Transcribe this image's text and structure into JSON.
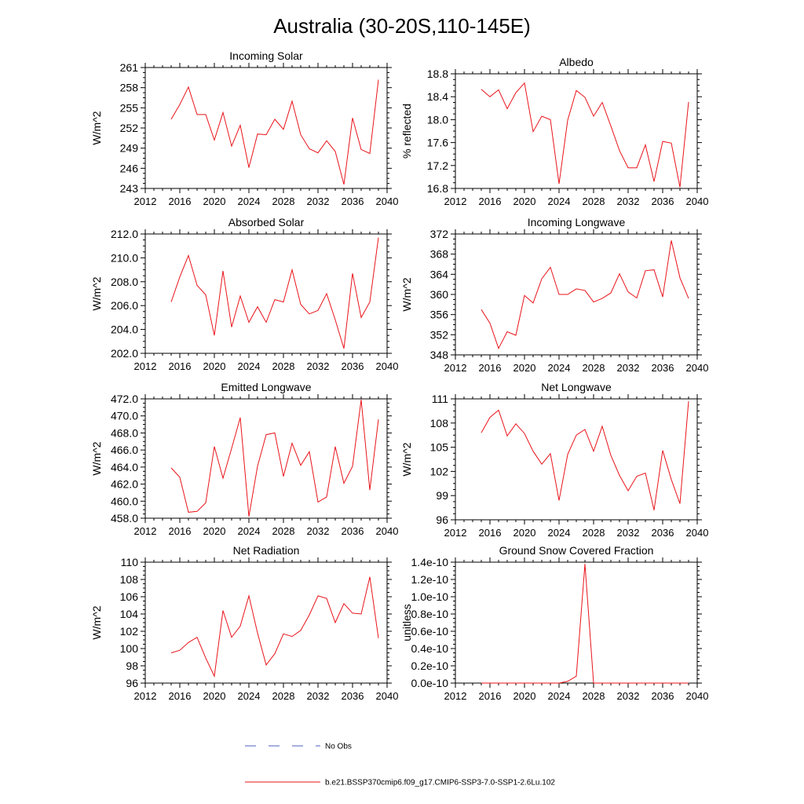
{
  "figure": {
    "title": "Australia (30-20S,110-145E)",
    "legend": [
      {
        "label": "No Obs",
        "color": "#4b5fc0",
        "style": "dashed"
      },
      {
        "label": "b.e21.BSSP370cmip6.f09_g17.CMIP6-SSP3-7.0-SSP1-2.6Lu.102",
        "color": "#e8141a",
        "style": "solid"
      }
    ]
  },
  "colors": {
    "series": "#e8141a",
    "axis": "#000000"
  },
  "chart_data": [
    {
      "type": "line",
      "title": "Incoming Solar",
      "ylabel": "W/m^2",
      "xlabel": "",
      "xlim": [
        2012,
        2040
      ],
      "xticks": [
        2012,
        2016,
        2020,
        2024,
        2028,
        2032,
        2036,
        2040
      ],
      "ylim": [
        243,
        261
      ],
      "yticks": [
        {
          "v": 243,
          "label": "243"
        },
        {
          "v": 246,
          "label": "246"
        },
        {
          "v": 249,
          "label": "249"
        },
        {
          "v": 252,
          "label": "252"
        },
        {
          "v": 255,
          "label": "255"
        },
        {
          "v": 258,
          "label": "258"
        },
        {
          "v": 261,
          "label": "261"
        }
      ],
      "x": [
        2015,
        2016,
        2017,
        2018,
        2019,
        2020,
        2021,
        2022,
        2023,
        2024,
        2025,
        2026,
        2027,
        2028,
        2029,
        2030,
        2031,
        2032,
        2033,
        2034,
        2035,
        2036,
        2037,
        2038,
        2039
      ],
      "series": [
        {
          "values": [
            253.3,
            255.5,
            258.1,
            254.0,
            254.0,
            250.2,
            254.3,
            249.3,
            252.4,
            246.1,
            251.1,
            251.0,
            253.3,
            251.8,
            256.0,
            251.0,
            248.9,
            248.3,
            250.1,
            248.5,
            243.6,
            253.5,
            248.8,
            248.2,
            259.2
          ]
        }
      ]
    },
    {
      "type": "line",
      "title": "Albedo",
      "ylabel": "% reflected",
      "xlabel": "",
      "xlim": [
        2012,
        2040
      ],
      "xticks": [
        2012,
        2016,
        2020,
        2024,
        2028,
        2032,
        2036,
        2040
      ],
      "ylim": [
        16.8,
        18.8
      ],
      "yticks": [
        {
          "v": 16.8,
          "label": "16.8"
        },
        {
          "v": 17.2,
          "label": "17.2"
        },
        {
          "v": 17.6,
          "label": "17.6"
        },
        {
          "v": 18.0,
          "label": "18.0"
        },
        {
          "v": 18.4,
          "label": "18.4"
        },
        {
          "v": 18.8,
          "label": "18.8"
        }
      ],
      "x": [
        2015,
        2016,
        2017,
        2018,
        2019,
        2020,
        2021,
        2022,
        2023,
        2024,
        2025,
        2026,
        2027,
        2028,
        2029,
        2030,
        2031,
        2032,
        2033,
        2034,
        2035,
        2036,
        2037,
        2038,
        2039
      ],
      "series": [
        {
          "values": [
            18.53,
            18.4,
            18.52,
            18.19,
            18.47,
            18.64,
            17.79,
            18.06,
            18.0,
            16.88,
            17.99,
            18.51,
            18.39,
            18.06,
            18.3,
            17.89,
            17.46,
            17.16,
            17.16,
            17.56,
            16.92,
            17.62,
            17.59,
            16.82,
            18.31
          ]
        }
      ]
    },
    {
      "type": "line",
      "title": "Absorbed Solar",
      "ylabel": "W/m^2",
      "xlabel": "",
      "xlim": [
        2012,
        2040
      ],
      "xticks": [
        2012,
        2016,
        2020,
        2024,
        2028,
        2032,
        2036,
        2040
      ],
      "ylim": [
        202.0,
        212.0
      ],
      "yticks": [
        {
          "v": 202,
          "label": "202.0"
        },
        {
          "v": 204,
          "label": "204.0"
        },
        {
          "v": 206,
          "label": "206.0"
        },
        {
          "v": 208,
          "label": "208.0"
        },
        {
          "v": 210,
          "label": "210.0"
        },
        {
          "v": 212,
          "label": "212.0"
        }
      ],
      "x": [
        2015,
        2016,
        2017,
        2018,
        2019,
        2020,
        2021,
        2022,
        2023,
        2024,
        2025,
        2026,
        2027,
        2028,
        2029,
        2030,
        2031,
        2032,
        2033,
        2034,
        2035,
        2036,
        2037,
        2038,
        2039
      ],
      "series": [
        {
          "values": [
            206.3,
            208.4,
            210.2,
            207.7,
            206.9,
            203.5,
            208.9,
            204.2,
            206.8,
            204.6,
            205.9,
            204.6,
            206.5,
            206.3,
            209.0,
            206.1,
            205.3,
            205.6,
            207.0,
            204.8,
            202.4,
            208.7,
            205.0,
            206.3,
            211.7
          ]
        }
      ]
    },
    {
      "type": "line",
      "title": "Incoming Longwave",
      "ylabel": "W/m^2",
      "xlabel": "",
      "xlim": [
        2012,
        2040
      ],
      "xticks": [
        2012,
        2016,
        2020,
        2024,
        2028,
        2032,
        2036,
        2040
      ],
      "ylim": [
        348,
        372
      ],
      "yticks": [
        {
          "v": 348,
          "label": "348"
        },
        {
          "v": 352,
          "label": "352"
        },
        {
          "v": 356,
          "label": "356"
        },
        {
          "v": 360,
          "label": "360"
        },
        {
          "v": 364,
          "label": "364"
        },
        {
          "v": 368,
          "label": "368"
        },
        {
          "v": 372,
          "label": "372"
        }
      ],
      "x": [
        2015,
        2016,
        2017,
        2018,
        2019,
        2020,
        2021,
        2022,
        2023,
        2024,
        2025,
        2026,
        2027,
        2028,
        2029,
        2030,
        2031,
        2032,
        2033,
        2034,
        2035,
        2036,
        2037,
        2038,
        2039
      ],
      "series": [
        {
          "values": [
            357.0,
            354.3,
            349.3,
            352.6,
            351.9,
            359.8,
            358.3,
            363.1,
            365.4,
            360.0,
            360.0,
            361.1,
            360.8,
            358.5,
            359.2,
            360.3,
            364.1,
            360.5,
            359.3,
            364.7,
            364.9,
            359.5,
            370.7,
            363.3,
            359.2
          ]
        }
      ]
    },
    {
      "type": "line",
      "title": "Emitted Longwave",
      "ylabel": "W/m^2",
      "xlabel": "",
      "xlim": [
        2012,
        2040
      ],
      "xticks": [
        2012,
        2016,
        2020,
        2024,
        2028,
        2032,
        2036,
        2040
      ],
      "ylim": [
        458.0,
        472.0
      ],
      "yticks": [
        {
          "v": 458,
          "label": "458.0"
        },
        {
          "v": 460,
          "label": "460.0"
        },
        {
          "v": 462,
          "label": "462.0"
        },
        {
          "v": 464,
          "label": "464.0"
        },
        {
          "v": 466,
          "label": "466.0"
        },
        {
          "v": 468,
          "label": "468.0"
        },
        {
          "v": 470,
          "label": "470.0"
        },
        {
          "v": 472,
          "label": "472.0"
        }
      ],
      "x": [
        2015,
        2016,
        2017,
        2018,
        2019,
        2020,
        2021,
        2022,
        2023,
        2024,
        2025,
        2026,
        2027,
        2028,
        2029,
        2030,
        2031,
        2032,
        2033,
        2034,
        2035,
        2036,
        2037,
        2038,
        2039
      ],
      "series": [
        {
          "values": [
            463.9,
            462.8,
            458.7,
            458.8,
            459.8,
            466.4,
            462.7,
            466.2,
            469.8,
            458.2,
            464.1,
            467.8,
            468.0,
            462.9,
            466.8,
            464.2,
            465.8,
            459.9,
            460.5,
            466.4,
            462.1,
            464.1,
            471.9,
            461.3,
            469.6
          ]
        }
      ]
    },
    {
      "type": "line",
      "title": "Net Longwave",
      "ylabel": "W/m^2",
      "xlabel": "",
      "xlim": [
        2012,
        2040
      ],
      "xticks": [
        2012,
        2016,
        2020,
        2024,
        2028,
        2032,
        2036,
        2040
      ],
      "ylim": [
        96,
        111
      ],
      "yticks": [
        {
          "v": 96,
          "label": "96"
        },
        {
          "v": 99,
          "label": "99"
        },
        {
          "v": 102,
          "label": "102"
        },
        {
          "v": 105,
          "label": "105"
        },
        {
          "v": 108,
          "label": "108"
        },
        {
          "v": 111,
          "label": "111"
        }
      ],
      "x": [
        2015,
        2016,
        2017,
        2018,
        2019,
        2020,
        2021,
        2022,
        2023,
        2024,
        2025,
        2026,
        2027,
        2028,
        2029,
        2030,
        2031,
        2032,
        2033,
        2034,
        2035,
        2036,
        2037,
        2038,
        2039
      ],
      "series": [
        {
          "values": [
            106.8,
            108.7,
            109.6,
            106.4,
            107.9,
            106.7,
            104.5,
            102.9,
            104.2,
            98.4,
            104.1,
            106.5,
            107.2,
            104.5,
            107.6,
            104.0,
            101.5,
            99.6,
            101.4,
            101.8,
            97.2,
            104.6,
            101.0,
            98.0,
            110.7
          ]
        }
      ]
    },
    {
      "type": "line",
      "title": "Net Radiation",
      "ylabel": "W/m^2",
      "xlabel": "",
      "xlim": [
        2012,
        2040
      ],
      "xticks": [
        2012,
        2016,
        2020,
        2024,
        2028,
        2032,
        2036,
        2040
      ],
      "ylim": [
        96,
        110
      ],
      "yticks": [
        {
          "v": 96,
          "label": "96"
        },
        {
          "v": 98,
          "label": "98"
        },
        {
          "v": 100,
          "label": "100"
        },
        {
          "v": 102,
          "label": "102"
        },
        {
          "v": 104,
          "label": "104"
        },
        {
          "v": 106,
          "label": "106"
        },
        {
          "v": 108,
          "label": "108"
        },
        {
          "v": 110,
          "label": "110"
        }
      ],
      "x": [
        2015,
        2016,
        2017,
        2018,
        2019,
        2020,
        2021,
        2022,
        2023,
        2024,
        2025,
        2026,
        2027,
        2028,
        2029,
        2030,
        2031,
        2032,
        2033,
        2034,
        2035,
        2036,
        2037,
        2038,
        2039
      ],
      "series": [
        {
          "values": [
            99.5,
            99.8,
            100.7,
            101.3,
            98.9,
            96.8,
            104.4,
            101.3,
            102.6,
            106.1,
            101.8,
            98.1,
            99.4,
            101.7,
            101.4,
            102.1,
            103.9,
            106.1,
            105.8,
            103.0,
            105.2,
            104.1,
            104.0,
            108.3,
            101.2
          ]
        }
      ]
    },
    {
      "type": "line",
      "title": "Ground Snow Covered Fraction",
      "ylabel": "unitless",
      "xlabel": "",
      "xlim": [
        2012,
        2040
      ],
      "xticks": [
        2012,
        2016,
        2020,
        2024,
        2028,
        2032,
        2036,
        2040
      ],
      "ylim": [
        0,
        1.4e-10
      ],
      "yticks": [
        {
          "v": 0,
          "label": "0.0e-10"
        },
        {
          "v": 2e-11,
          "label": "0.2e-10"
        },
        {
          "v": 4e-11,
          "label": "0.4e-10"
        },
        {
          "v": 6e-11,
          "label": "0.6e-10"
        },
        {
          "v": 8e-11,
          "label": "0.8e-10"
        },
        {
          "v": 1e-10,
          "label": "1.0e-10"
        },
        {
          "v": 1.2e-10,
          "label": "1.2e-10"
        },
        {
          "v": 1.4e-10,
          "label": "1.4e-10"
        }
      ],
      "x": [
        2015,
        2016,
        2017,
        2018,
        2019,
        2020,
        2021,
        2022,
        2023,
        2024,
        2025,
        2026,
        2027,
        2028,
        2029,
        2030,
        2031,
        2032,
        2033,
        2034,
        2035,
        2036,
        2037,
        2038,
        2039
      ],
      "series": [
        {
          "values": [
            0,
            0,
            0,
            0,
            0,
            0,
            0,
            0,
            0,
            0,
            2e-12,
            8e-12,
            1.38e-10,
            0,
            0,
            0,
            0,
            0,
            0,
            0,
            0,
            0,
            0,
            0,
            0
          ]
        }
      ]
    }
  ]
}
